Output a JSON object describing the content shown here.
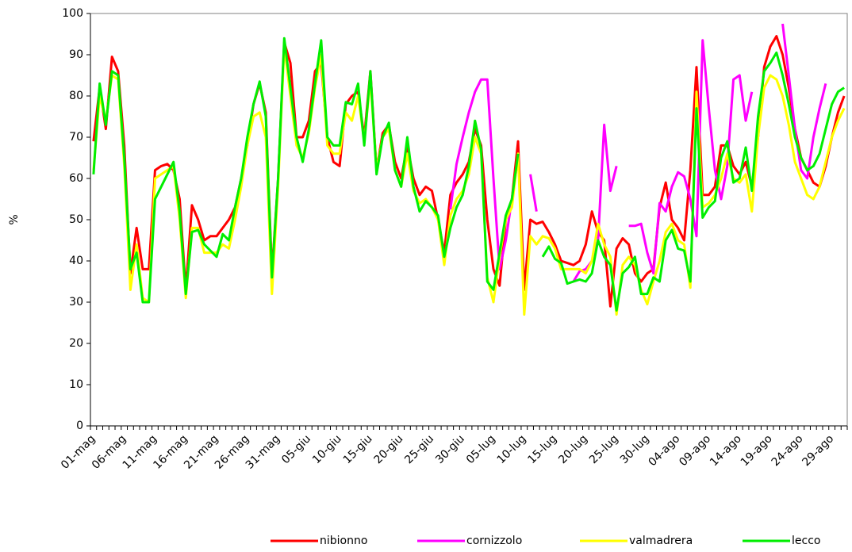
{
  "chart_data": {
    "type": "line",
    "y_label": "%",
    "categories": [
      "01-mag",
      null,
      null,
      null,
      null,
      "06-mag",
      null,
      null,
      null,
      null,
      "11-mag",
      null,
      null,
      null,
      null,
      "16-mag",
      null,
      null,
      null,
      null,
      "21-mag",
      null,
      null,
      null,
      null,
      "26-mag",
      null,
      null,
      null,
      null,
      "31-mag",
      null,
      null,
      null,
      null,
      "05-giu",
      null,
      null,
      null,
      null,
      "10-giu",
      null,
      null,
      null,
      null,
      "15-giu",
      null,
      null,
      null,
      null,
      "20-giu",
      null,
      null,
      null,
      null,
      "25-giu",
      null,
      null,
      null,
      null,
      "30-giu",
      null,
      null,
      null,
      null,
      "05-lug",
      null,
      null,
      null,
      null,
      "10-lug",
      null,
      null,
      null,
      null,
      "15-lug",
      null,
      null,
      null,
      null,
      "20-lug",
      null,
      null,
      null,
      null,
      "25-lug",
      null,
      null,
      null,
      null,
      "30-lug",
      null,
      null,
      null,
      null,
      "04-ago",
      null,
      null,
      null,
      null,
      "09-ago",
      null,
      null,
      null,
      null,
      "14-ago",
      null,
      null,
      null,
      null,
      "19-ago",
      null,
      null,
      null,
      null,
      "24-ago",
      null,
      null,
      null,
      null,
      "29-ago",
      null,
      null
    ],
    "series": [
      {
        "name": "nibionno",
        "color": "#ff0000",
        "values": [
          69,
          82,
          72,
          89.5,
          86,
          68,
          37,
          48,
          38,
          38,
          62,
          63,
          63.5,
          62,
          55,
          33,
          53.5,
          50,
          45,
          46,
          46,
          48,
          50,
          53,
          60,
          68,
          78,
          83,
          76,
          37,
          60,
          93,
          88,
          70,
          70,
          74,
          86,
          88,
          70,
          64,
          63,
          78,
          80,
          81,
          70,
          86,
          62,
          71,
          73,
          64,
          60,
          68,
          60,
          56,
          58,
          57,
          50,
          42,
          56,
          59,
          61,
          64,
          72,
          68,
          50,
          38,
          34,
          50,
          55,
          69,
          33,
          50,
          49,
          49.5,
          47,
          44,
          40,
          39.5,
          39,
          40,
          44,
          52,
          47,
          45,
          29,
          43,
          45.5,
          44,
          37,
          35,
          37,
          38,
          53,
          59,
          50,
          48,
          45,
          62,
          87,
          56,
          56,
          58,
          68,
          68,
          63,
          61,
          64,
          58,
          70,
          87,
          92,
          94.5,
          90,
          82,
          72,
          65,
          62,
          59,
          58,
          63,
          70,
          76,
          80
        ]
      },
      {
        "name": "cornizzolo",
        "color": "#ff00ff",
        "values": [
          null,
          null,
          null,
          null,
          null,
          null,
          null,
          null,
          null,
          null,
          null,
          null,
          null,
          null,
          null,
          null,
          null,
          null,
          null,
          null,
          null,
          null,
          null,
          null,
          null,
          null,
          null,
          null,
          null,
          null,
          null,
          null,
          null,
          null,
          null,
          null,
          null,
          null,
          null,
          null,
          null,
          null,
          null,
          null,
          null,
          null,
          null,
          null,
          null,
          null,
          null,
          null,
          null,
          null,
          null,
          null,
          null,
          null,
          52.5,
          63.5,
          70,
          76,
          81,
          84,
          84,
          60,
          38,
          45,
          55,
          65,
          null,
          61,
          52,
          null,
          null,
          null,
          null,
          null,
          35,
          37.5,
          38,
          40,
          45,
          73,
          57,
          63,
          null,
          48.5,
          48.5,
          49,
          42,
          37,
          54,
          52,
          58,
          61.5,
          60.5,
          55,
          46,
          93.5,
          77,
          62,
          55,
          63,
          84,
          85,
          74,
          81,
          null,
          null,
          null,
          null,
          97.5,
          85,
          72,
          62,
          60,
          70,
          77,
          83,
          null,
          null,
          null
        ]
      },
      {
        "name": "valmadrera",
        "color": "#ffff00",
        "values": [
          62,
          80,
          74,
          85,
          84,
          63,
          33,
          44,
          31,
          30,
          60,
          61,
          62,
          63,
          50,
          31,
          48,
          48,
          42,
          42,
          42,
          44,
          43,
          50,
          58,
          68,
          75,
          76,
          70,
          32,
          58,
          92,
          80,
          68,
          65,
          71,
          82,
          90,
          68,
          66,
          66,
          76,
          74,
          80,
          69,
          84,
          62,
          70,
          72,
          62,
          58,
          66,
          57,
          54,
          55,
          53,
          50,
          39,
          51,
          55,
          57,
          61,
          70,
          66,
          36,
          30,
          41,
          50,
          53,
          66,
          27,
          46,
          44,
          46,
          45.5,
          43,
          38,
          38,
          38,
          38,
          37,
          40,
          49,
          44,
          41,
          27,
          39,
          41,
          39,
          33,
          29.5,
          35,
          40,
          47,
          49,
          45,
          44,
          33.5,
          81,
          53,
          54,
          56,
          60,
          66,
          60,
          59,
          61,
          52,
          70,
          82,
          85,
          84,
          80,
          73,
          64,
          60,
          56,
          55,
          58,
          64,
          70,
          74,
          77
        ]
      },
      {
        "name": "lecco",
        "color": "#00ee00",
        "values": [
          61,
          83,
          73,
          86,
          85,
          65,
          38,
          42,
          30,
          30,
          55,
          58,
          61,
          64,
          52,
          32,
          47,
          47.5,
          44,
          42.5,
          41,
          46.5,
          45,
          53,
          60,
          70,
          78,
          83.5,
          75,
          36,
          60,
          94,
          82,
          70,
          64,
          72,
          83,
          93.5,
          70,
          68,
          68,
          78.5,
          78,
          83,
          68,
          86,
          61,
          70,
          73.5,
          62,
          58,
          70,
          58,
          52,
          54.5,
          53,
          51,
          41,
          48,
          53,
          56,
          63,
          74,
          67,
          35,
          33,
          42,
          51,
          55,
          66,
          null,
          null,
          null,
          41,
          43.5,
          40.5,
          39.5,
          34.5,
          35,
          35.5,
          35,
          37,
          45,
          41,
          39,
          28,
          37,
          38.5,
          41,
          32,
          32,
          36,
          35,
          45,
          47.5,
          43,
          42.5,
          35,
          77,
          50.5,
          53,
          54.5,
          65,
          69,
          59,
          60,
          67.5,
          57,
          75,
          86,
          88,
          90.5,
          85,
          78,
          70,
          65,
          62,
          63,
          66,
          72,
          78,
          81,
          82
        ]
      }
    ],
    "ylim": [
      0,
      100
    ],
    "yticks": [
      0,
      10,
      20,
      30,
      40,
      50,
      60,
      70,
      80,
      90,
      100
    ],
    "legend": "bottom"
  }
}
